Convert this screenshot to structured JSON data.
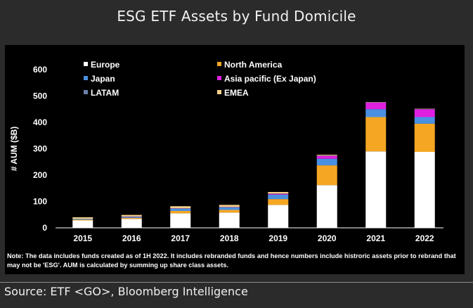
{
  "header": {
    "title": "ESG ETF Assets by Fund Domicile"
  },
  "note": "Note: The data  includes funds created as of 1H 2022. It includes rebranded funds and hence numbers include histroric assets prior to rebrand that may not be 'ESG'. AUM is calculated by summing up share class assets.",
  "source": "Source: ETF <GO>, Bloomberg Intelligence",
  "chart_data": {
    "type": "bar",
    "stacked": true,
    "title": "",
    "xlabel": "",
    "ylabel": "# AUM ($B)",
    "ylim": [
      0,
      600
    ],
    "yticks": [
      0,
      100,
      200,
      300,
      400,
      500,
      600
    ],
    "grid": false,
    "legend_position": "top-left",
    "categories": [
      "2015",
      "2016",
      "2017",
      "2018",
      "2019",
      "2020",
      "2021",
      "2022"
    ],
    "series": [
      {
        "name": "Europe",
        "color": "#ffffff",
        "values": [
          28,
          34,
          55,
          58,
          87,
          162,
          290,
          288
        ]
      },
      {
        "name": "North America",
        "color": "#f5a623",
        "values": [
          3,
          4,
          9,
          10,
          22,
          75,
          130,
          107
        ]
      },
      {
        "name": "Japan",
        "color": "#4a90e2",
        "values": [
          3,
          4,
          9,
          10,
          17,
          25,
          30,
          25
        ]
      },
      {
        "name": "Asia pacific (Ex Japan)",
        "color": "#e020e0",
        "values": [
          0,
          1,
          1,
          1,
          3,
          11,
          25,
          30
        ]
      },
      {
        "name": "LATAM",
        "color": "#6b7fa8",
        "values": [
          0,
          0,
          0,
          0,
          1,
          1,
          1,
          1
        ]
      },
      {
        "name": "EMEA",
        "color": "#f5d08a",
        "values": [
          6,
          6,
          8,
          8,
          6,
          3,
          1,
          1
        ]
      }
    ]
  }
}
